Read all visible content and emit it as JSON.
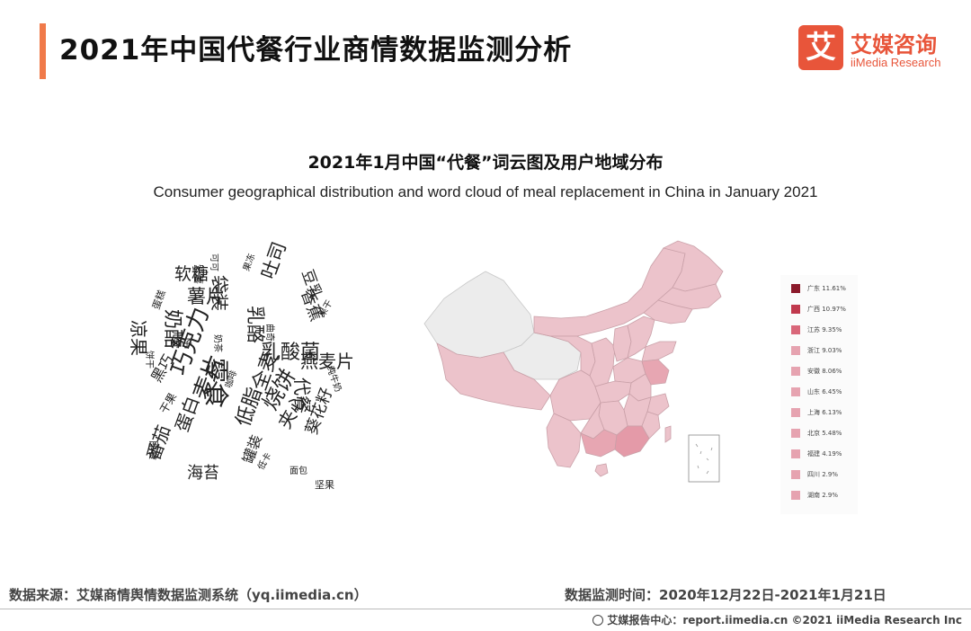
{
  "header": {
    "title": "2021年中国代餐行业商情数据监测分析",
    "logo_mark": "艾",
    "logo_cn": "艾媒咨询",
    "logo_en": "iiMedia Research"
  },
  "chart": {
    "title": "2021年1月中国“代餐”词云图及用户地域分布",
    "subtitle": "Consumer geographical distribution and word cloud of meal replacement in China in January 2021"
  },
  "wordcloud": {
    "words": [
      "软糖",
      "薯片",
      "奶酪",
      "乳酪",
      "吐司",
      "香蕉",
      "豆乳",
      "凉果",
      "零食",
      "燕麦片",
      "乳酸菌",
      "代餐",
      "袋装",
      "黑巧",
      "巧克力",
      "麦片",
      "蛋白",
      "全麦",
      "夹心",
      "低脂",
      "烧饼",
      "番茄",
      "海苔",
      "葵花籽",
      "罐装",
      "蛋糕",
      "饼干",
      "椰子",
      "干果",
      "即食",
      "面包",
      "坚果",
      "低卡",
      "可可",
      "果冻",
      "奶茶",
      "曲奇",
      "果干",
      "纯牛奶",
      "咖啡",
      "紫薯"
    ]
  },
  "chart_data": {
    "type": "map",
    "title": "2021年1月中国“代餐”词云图及用户地域分布",
    "legend_position": "right",
    "series": [
      {
        "name": "广东",
        "value": 11.61,
        "color": "#8b1a2b"
      },
      {
        "name": "广西",
        "value": 10.97,
        "color": "#c0394d"
      },
      {
        "name": "江苏",
        "value": 9.35,
        "color": "#d9677a"
      },
      {
        "name": "浙江",
        "value": 9.03,
        "color": "#e6a3b0"
      },
      {
        "name": "安徽",
        "value": 8.06,
        "color": "#e6a3b0"
      },
      {
        "name": "山东",
        "value": 6.45,
        "color": "#e6a3b0"
      },
      {
        "name": "上海",
        "value": 6.13,
        "color": "#e6a3b0"
      },
      {
        "name": "北京",
        "value": 5.48,
        "color": "#e6a3b0"
      },
      {
        "name": "福建",
        "value": 4.19,
        "color": "#e6a3b0"
      },
      {
        "name": "四川",
        "value": 2.9,
        "color": "#e6a3b0"
      },
      {
        "name": "湖南",
        "value": 2.9,
        "color": "#e6a3b0"
      }
    ],
    "map_colors": {
      "province_fill": "#ecc3cb",
      "no_data_fill": "#ececec",
      "border": "#c9a0a8"
    }
  },
  "footer": {
    "source": "数据来源：艾媒商情舆情数据监测系统（yq.iimedia.cn）",
    "period": "数据监测时间：2020年12月22日-2021年1月21日",
    "right": "艾媒报告中心：report.iimedia.cn ©2021 iiMedia Research Inc"
  }
}
